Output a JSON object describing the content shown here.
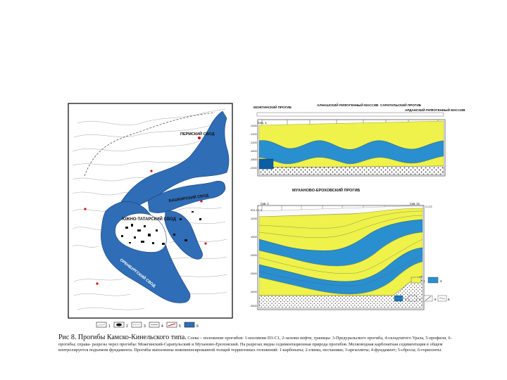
{
  "map": {
    "labels": {
      "perm_vault": "ПЕРМСКИЙ СВОД",
      "bashkir_vault": "БАШКИРСКИЙ СВОД",
      "tatar_vault": "ЮЖНО-ТАТАРСКИЙ СВОД",
      "orenburg_vault": "ОРЕНБУРГСКИЙ СВОД"
    },
    "legend_numbers": [
      "1",
      "2",
      "3",
      "4",
      "5",
      "6"
    ]
  },
  "profile_top": {
    "headers": [
      "МОЖГИНСКИЙ ПРОГИБ",
      "АЛНАШСКИЙ РИФОГЕННЫЙ МАССИВ",
      "САРАПУЛЬСКИЙ ПРОГИБ",
      "АРДАНСКИЙ РИФОГЕННЫЙ МАССИВ"
    ],
    "well_start": "Скв. 1",
    "well_end": "Скв. 5",
    "depths": [
      "-1000",
      "-1200",
      "-1400",
      "-1600",
      "-1800",
      "-2000"
    ]
  },
  "profile_bottom": {
    "header": "МУХАНОВО-ЕРОХОВСКИЙ ПРОГИБ",
    "left_code": "ЮЗ-ССЗ",
    "right_code": "С-СЗ",
    "well_start": "Скв. 1",
    "well_end": "Скв. 21",
    "depths": [
      "-1000",
      "-1500",
      "-2000",
      "-2500",
      "-3000",
      "-3500"
    ]
  },
  "caption": {
    "lead": "Рис 8. Прогибы Камско-Кинельского типа.",
    "text": "Слева – положение прогибов: 1-изолинии D3-C1, 2-залежи нефти, границы: 3-Предуральского прогиба, 4-складчатого Урала, 5-профили, 6-прогибы; справа- разрезы через прогибы: Можгинский-Сарапульский и Муханово-Ероховский. На разрезах видна седиментационная природа прогибов. Мелководная карбонатная седиментация в общем контролируется подъемом фундамента. Прогибы выполнены некомпенсированной толщей терригенных отложений: 1-карбонаты; 2-глины, песчаники; 3-аргиллиты; 4-фундамент; 5-сбросы; 6-горизонты."
  }
}
